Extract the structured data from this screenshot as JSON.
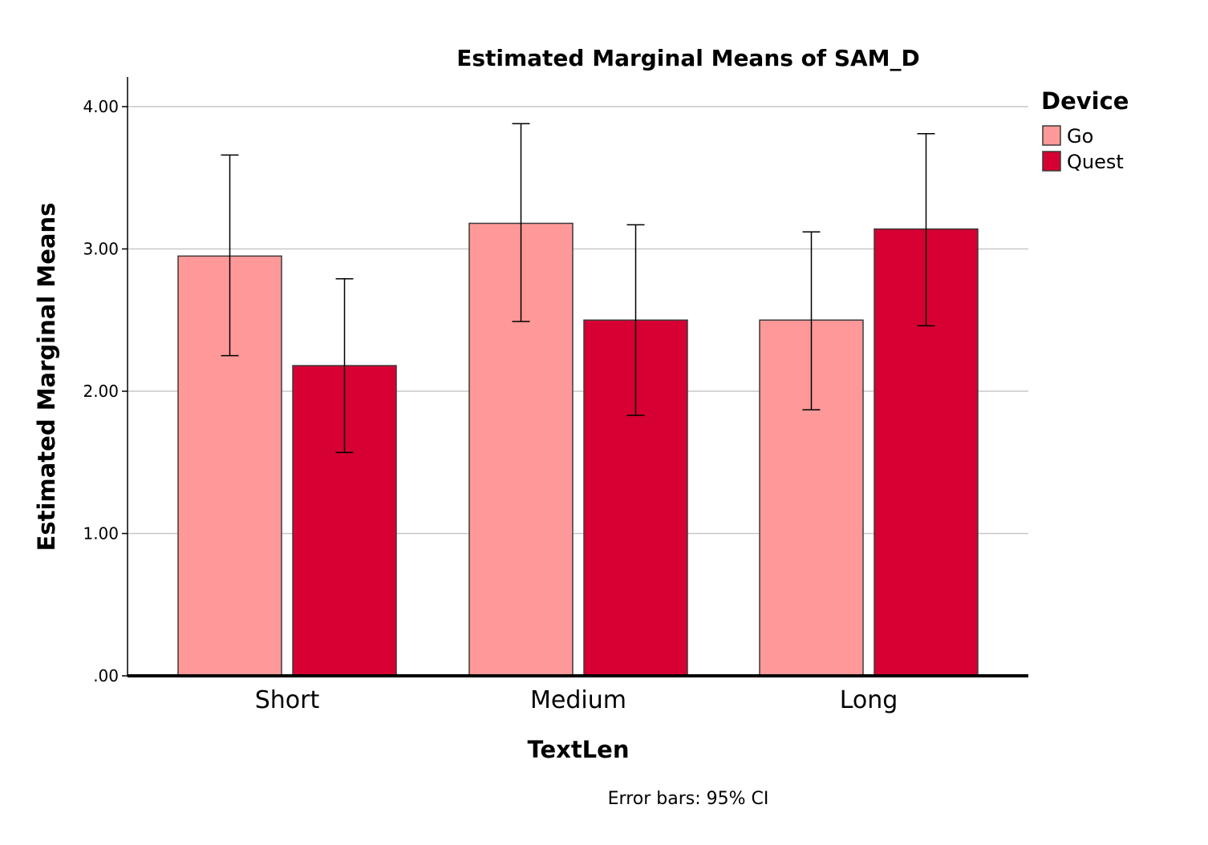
{
  "chart_data": {
    "type": "bar",
    "title": "Estimated Marginal Means of SAM_D",
    "xlabel": "TextLen",
    "ylabel": "Estimated Marginal Means",
    "categories": [
      "Short",
      "Medium",
      "Long"
    ],
    "ylim": [
      0,
      4.2
    ],
    "yticks": [
      0,
      1,
      2,
      3,
      4
    ],
    "ytick_labels": [
      ".00",
      "1.00",
      "2.00",
      "3.00",
      "4.00"
    ],
    "grid": true,
    "legend_title": "Device",
    "legend_position": "top-right",
    "series": [
      {
        "name": "Go",
        "color": "#FF9999",
        "values": [
          2.95,
          3.18,
          2.5
        ],
        "ci_low": [
          2.25,
          2.49,
          1.87
        ],
        "ci_high": [
          3.66,
          3.88,
          3.12
        ]
      },
      {
        "name": "Quest",
        "color": "#D60032",
        "values": [
          2.18,
          2.5,
          3.14
        ],
        "ci_low": [
          1.57,
          1.83,
          2.46
        ],
        "ci_high": [
          2.79,
          3.17,
          3.81
        ]
      }
    ],
    "note": "Error bars: 95% CI"
  }
}
